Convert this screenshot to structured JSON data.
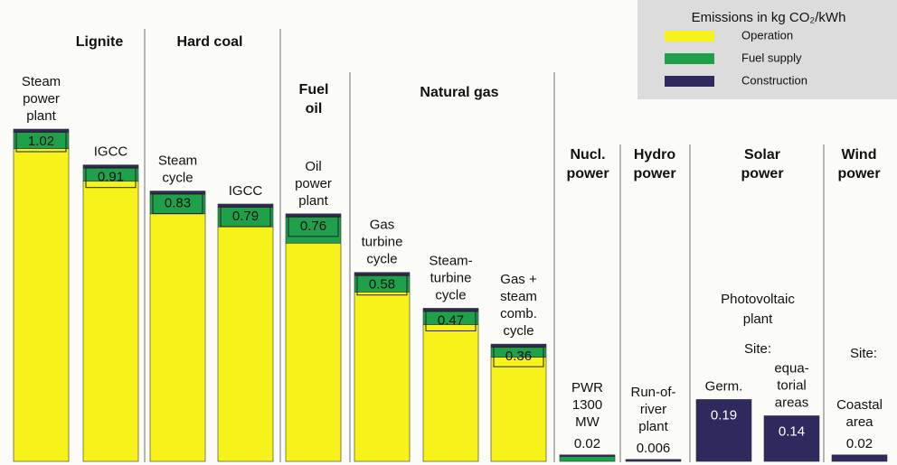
{
  "chart_data": {
    "type": "stacked-bar",
    "legend_title": "Emissions in kg CO₂/kWh",
    "groups": [
      "Lignite",
      "Hard coal",
      "Fuel\noil",
      "Natural gas",
      "Nucl.\npower",
      "Hydro\npower",
      "Solar\npower",
      "Wind\npower"
    ],
    "annotations": [
      "Photovoltaic\nplant",
      "Site:",
      "Site:"
    ],
    "categories": [
      "Steam\npower\nplant",
      "IGCC",
      "Steam\ncycle",
      "IGCC",
      "Oil\npower\nplant",
      "Gas\nturbine\ncycle",
      "Steam-\nturbine\ncycle",
      "Gas +\nsteam\ncomb.\ncycle",
      "PWR\n1300\nMW",
      "Run-of-\nriver\nplant",
      "Germ.",
      "equa-\ntorial\nareas",
      "Coastal\narea"
    ],
    "totals": [
      1.02,
      0.91,
      0.83,
      0.79,
      0.76,
      0.58,
      0.47,
      0.36,
      0.02,
      0.006,
      0.19,
      0.14,
      0.02
    ],
    "series": [
      {
        "name": "Operation",
        "color": "#f7f21a",
        "values": [
          0.96,
          0.86,
          0.76,
          0.72,
          0.67,
          0.52,
          0.42,
          0.32,
          0,
          0,
          0,
          0,
          0
        ]
      },
      {
        "name": "Fuel supply",
        "color": "#1fa04a",
        "values": [
          0.05,
          0.04,
          0.06,
          0.06,
          0.08,
          0.05,
          0.04,
          0.03,
          0.015,
          0,
          0,
          0,
          0
        ]
      },
      {
        "name": "Construction",
        "color": "#2f2a5e",
        "values": [
          0.01,
          0.01,
          0.01,
          0.01,
          0.01,
          0.01,
          0.01,
          0.01,
          0.005,
          0.006,
          0.19,
          0.14,
          0.02
        ]
      }
    ]
  }
}
